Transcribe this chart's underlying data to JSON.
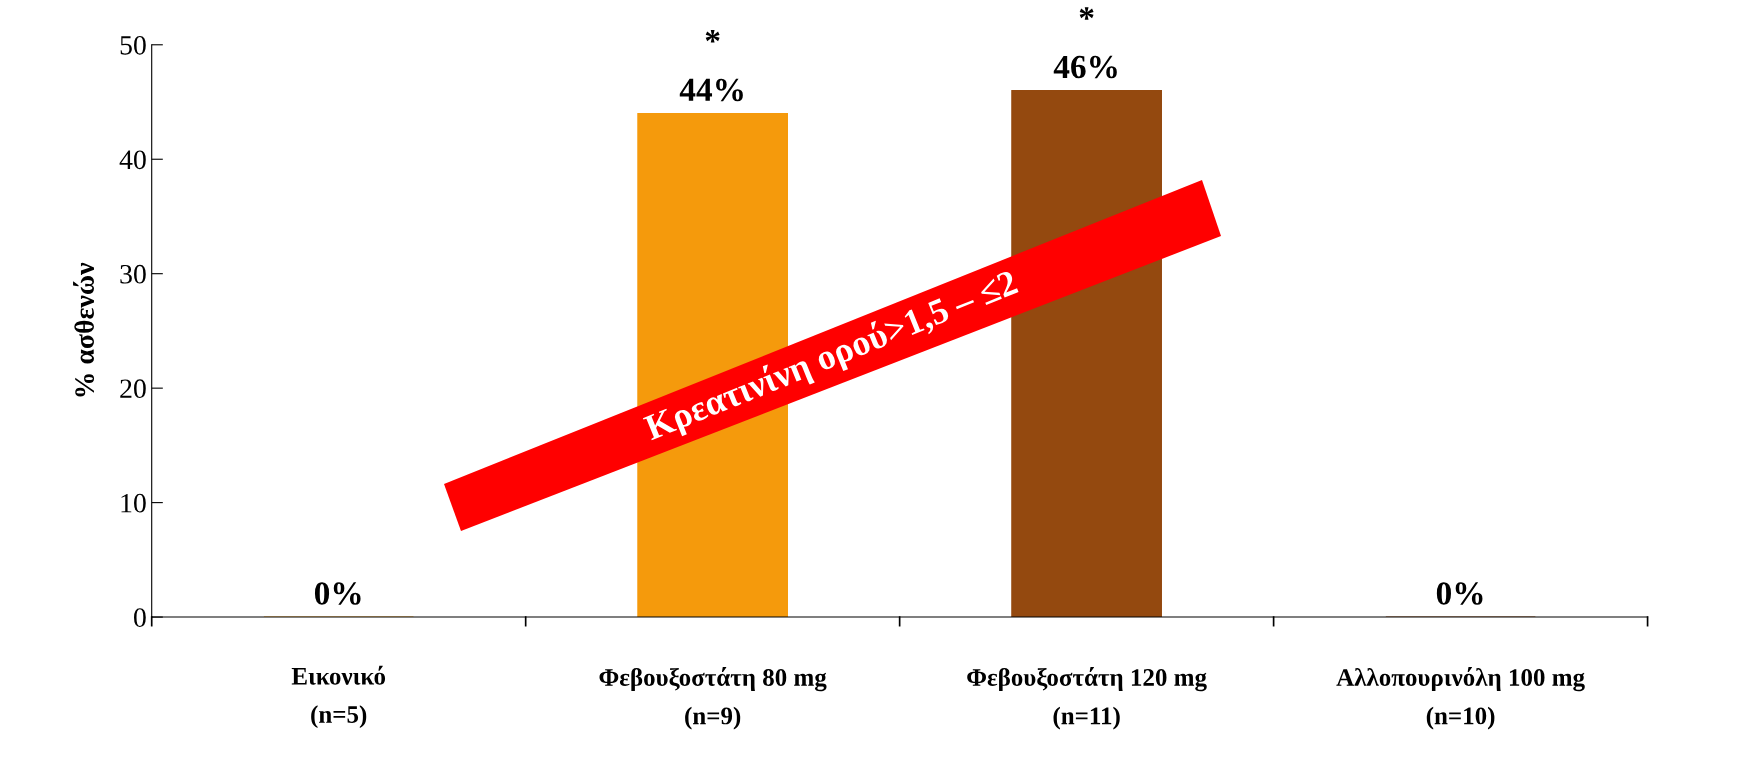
{
  "chart_data": {
    "type": "bar",
    "ylabel": "% ασθενών",
    "categories": [
      "Εικονικό\n(n=5)",
      "Φεβουξοστάτη 80 mg\n(n=9)",
      "Φεβουξοστάτη 120 mg\n(n=11)",
      "Αλλοπουρινόλη 100 mg\n(n=10)"
    ],
    "values": [
      0,
      44,
      46,
      0
    ],
    "colors": [
      "#f59a0c",
      "#f59a0c",
      "#94490f",
      "#94490f"
    ],
    "value_labels": [
      "0%",
      "44%",
      "46%",
      "0%"
    ],
    "ylim": [
      0,
      50
    ],
    "yticks": [
      0,
      10,
      20,
      30,
      40,
      50
    ],
    "grid": false,
    "legend": false,
    "annotations": [
      "*",
      "*",
      "Κρεατινίνη ορού>1,5 – ≤2"
    ]
  }
}
